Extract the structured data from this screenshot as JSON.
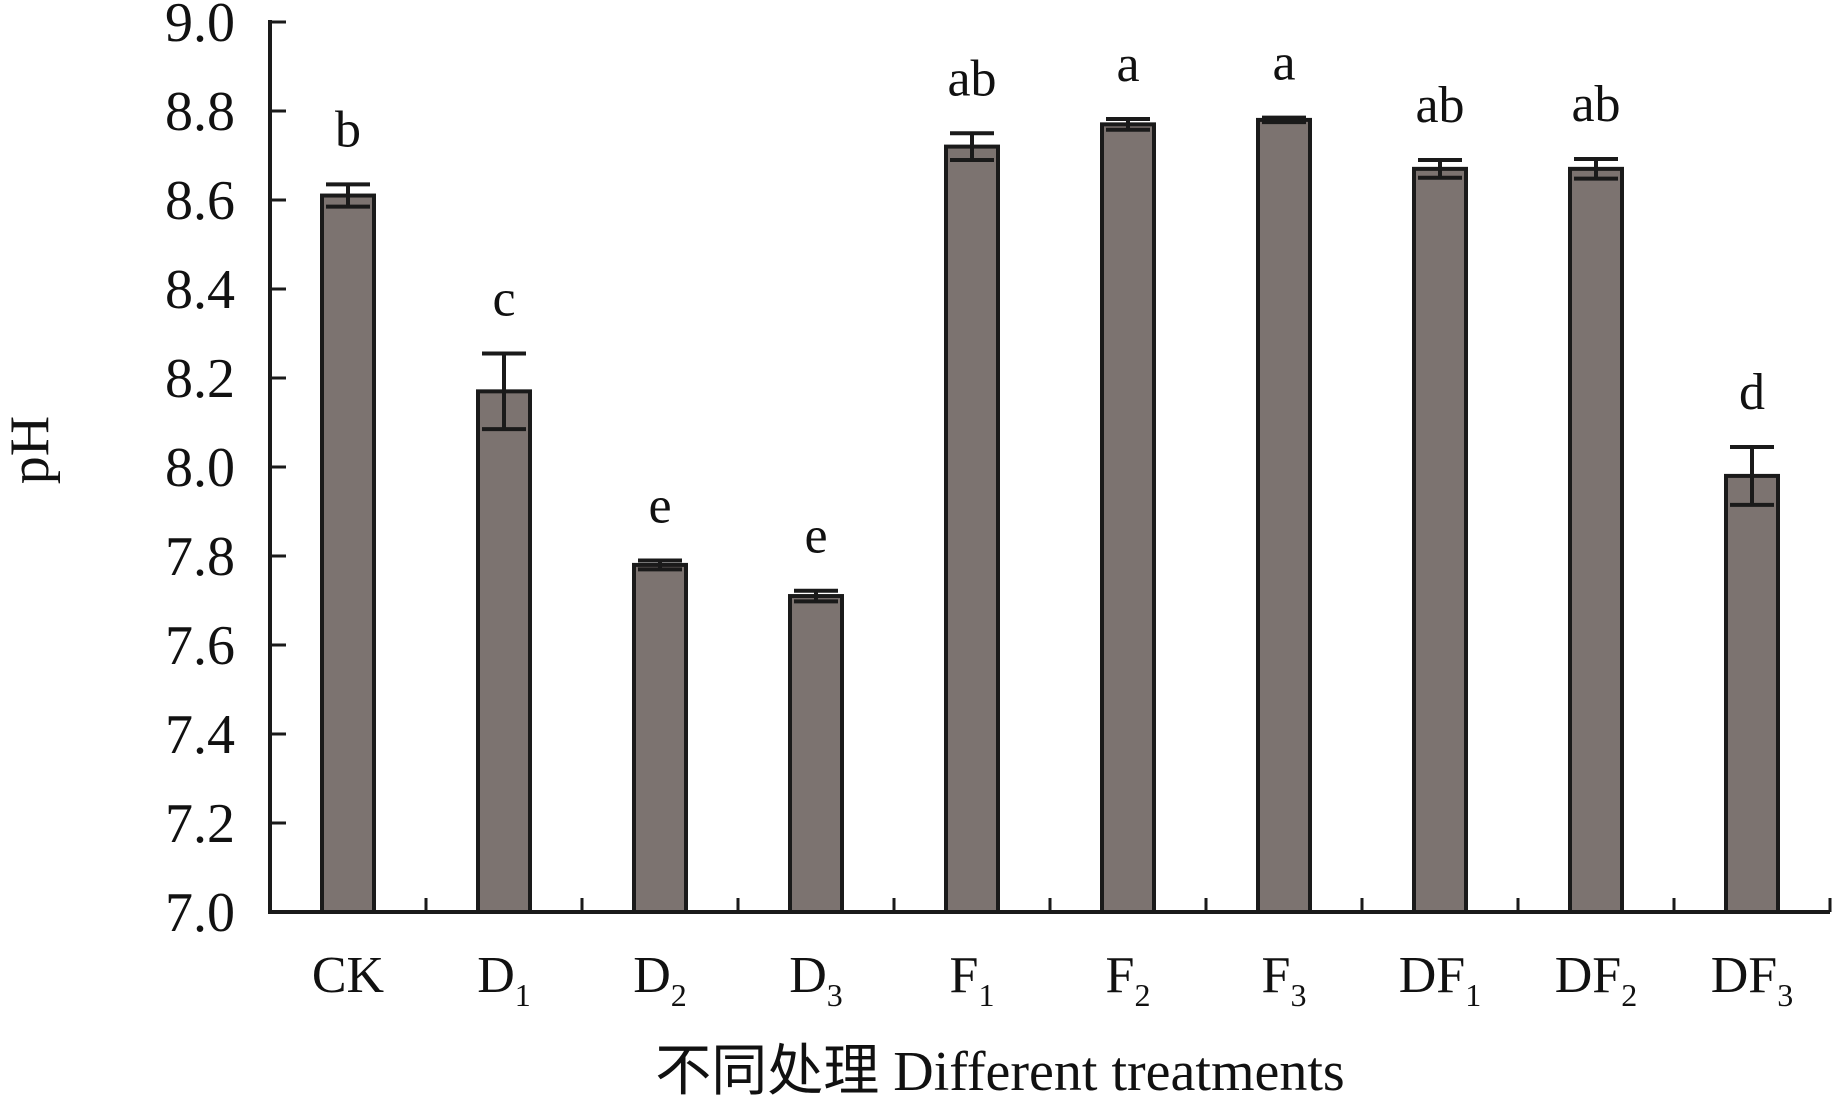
{
  "chart_data": {
    "type": "bar",
    "title": "",
    "xlabel": "不同处理 Different treatments",
    "ylabel": "pH",
    "ylim": [
      7.0,
      9.0
    ],
    "yticks": [
      "7.0",
      "7.2",
      "7.4",
      "7.6",
      "7.8",
      "8.0",
      "8.2",
      "8.4",
      "8.6",
      "8.8",
      "9.0"
    ],
    "categories": [
      {
        "main": "CK",
        "sub": ""
      },
      {
        "main": "D",
        "sub": "1"
      },
      {
        "main": "D",
        "sub": "2"
      },
      {
        "main": "D",
        "sub": "3"
      },
      {
        "main": "F",
        "sub": "1"
      },
      {
        "main": "F",
        "sub": "2"
      },
      {
        "main": "F",
        "sub": "3"
      },
      {
        "main": "DF",
        "sub": "1"
      },
      {
        "main": "DF",
        "sub": "2"
      },
      {
        "main": "DF",
        "sub": "3"
      }
    ],
    "values": [
      8.61,
      8.17,
      7.78,
      7.71,
      8.72,
      8.77,
      8.78,
      8.67,
      8.67,
      7.98
    ],
    "errors": [
      0.025,
      0.085,
      0.01,
      0.012,
      0.03,
      0.012,
      0.005,
      0.02,
      0.022,
      0.065
    ],
    "significance": [
      "b",
      "c",
      "e",
      "e",
      "ab",
      "a",
      "a",
      "ab",
      "ab",
      "d"
    ],
    "bar_color": "#7c7370",
    "grid": false,
    "legend": "none"
  }
}
